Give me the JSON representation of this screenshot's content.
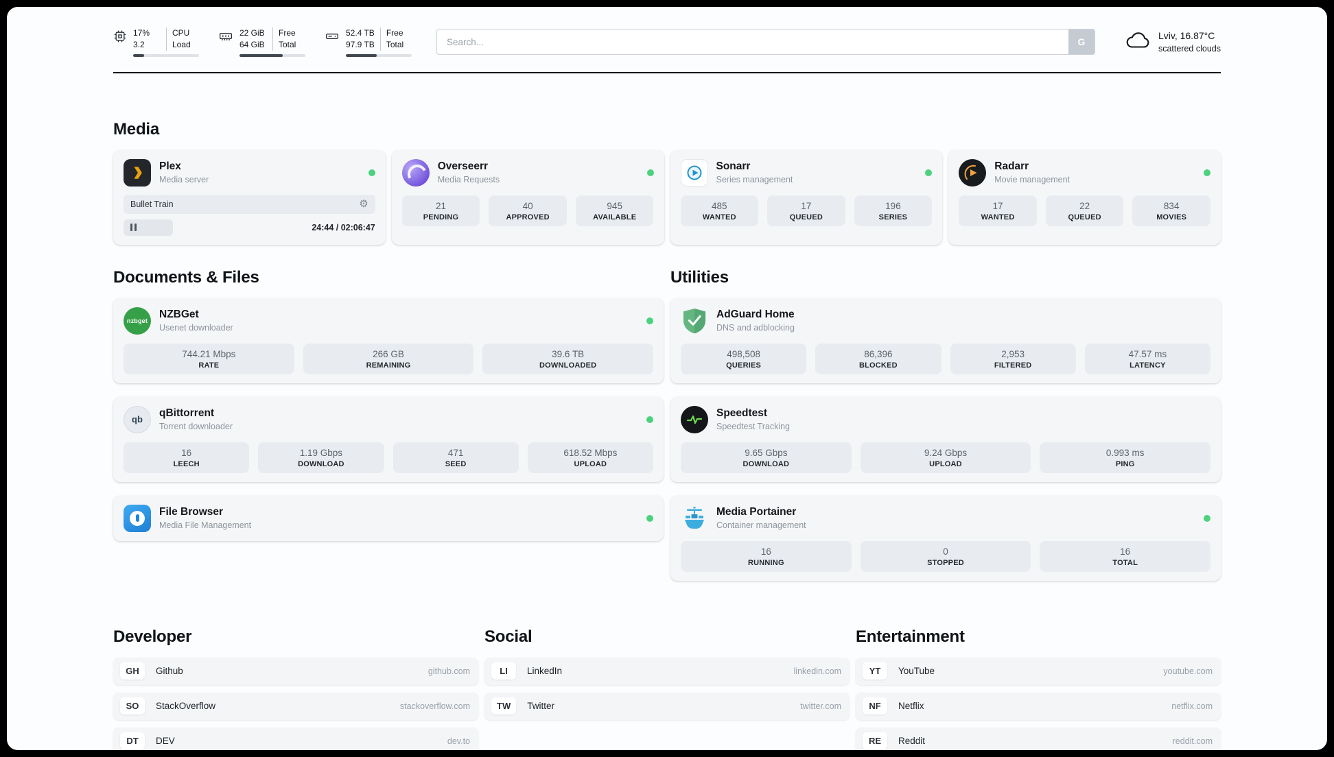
{
  "header": {
    "cpu": {
      "value_top": "17%",
      "value_bottom": "3.2",
      "label_top": "CPU",
      "label_bottom": "Load",
      "progress_percent": 17
    },
    "ram": {
      "value_top": "22 GiB",
      "value_bottom": "64 GiB",
      "label_top": "Free",
      "label_bottom": "Total",
      "progress_percent": 66
    },
    "disk": {
      "value_top": "52.4 TB",
      "value_bottom": "97.9 TB",
      "label_top": "Free",
      "label_bottom": "Total",
      "progress_percent": 47
    },
    "search": {
      "placeholder": "Search...",
      "button_label": "G"
    },
    "weather": {
      "location": "Lviv, 16.87°C",
      "condition": "scattered clouds"
    }
  },
  "sections": {
    "media": {
      "title": "Media",
      "apps": [
        {
          "name": "Plex",
          "subtitle": "Media server",
          "now_playing": "Bullet Train",
          "elapsed": "24:44 / 02:06:47",
          "progress_percent": 19.5
        },
        {
          "name": "Overseerr",
          "subtitle": "Media Requests",
          "stats": [
            {
              "value": "21",
              "label": "PENDING"
            },
            {
              "value": "40",
              "label": "APPROVED"
            },
            {
              "value": "945",
              "label": "AVAILABLE"
            }
          ]
        },
        {
          "name": "Sonarr",
          "subtitle": "Series management",
          "stats": [
            {
              "value": "485",
              "label": "WANTED"
            },
            {
              "value": "17",
              "label": "QUEUED"
            },
            {
              "value": "196",
              "label": "SERIES"
            }
          ]
        },
        {
          "name": "Radarr",
          "subtitle": "Movie management",
          "stats": [
            {
              "value": "17",
              "label": "WANTED"
            },
            {
              "value": "22",
              "label": "QUEUED"
            },
            {
              "value": "834",
              "label": "MOVIES"
            }
          ]
        }
      ]
    },
    "documents": {
      "title": "Documents & Files",
      "apps": [
        {
          "name": "NZBGet",
          "subtitle": "Usenet downloader",
          "stats": [
            {
              "value": "744.21 Mbps",
              "label": "RATE"
            },
            {
              "value": "266 GB",
              "label": "REMAINING"
            },
            {
              "value": "39.6 TB",
              "label": "DOWNLOADED"
            }
          ]
        },
        {
          "name": "qBittorrent",
          "subtitle": "Torrent downloader",
          "stats": [
            {
              "value": "16",
              "label": "LEECH"
            },
            {
              "value": "1.19 Gbps",
              "label": "DOWNLOAD"
            },
            {
              "value": "471",
              "label": "SEED"
            },
            {
              "value": "618.52 Mbps",
              "label": "UPLOAD"
            }
          ]
        },
        {
          "name": "File Browser",
          "subtitle": "Media File Management"
        }
      ]
    },
    "utilities": {
      "title": "Utilities",
      "apps": [
        {
          "name": "AdGuard Home",
          "subtitle": "DNS and adblocking",
          "stats": [
            {
              "value": "498,508",
              "label": "QUERIES"
            },
            {
              "value": "86,396",
              "label": "BLOCKED"
            },
            {
              "value": "2,953",
              "label": "FILTERED"
            },
            {
              "value": "47.57 ms",
              "label": "LATENCY"
            }
          ]
        },
        {
          "name": "Speedtest",
          "subtitle": "Speedtest Tracking",
          "stats": [
            {
              "value": "9.65 Gbps",
              "label": "DOWNLOAD"
            },
            {
              "value": "9.24 Gbps",
              "label": "UPLOAD"
            },
            {
              "value": "0.993 ms",
              "label": "PING"
            }
          ]
        },
        {
          "name": "Media Portainer",
          "subtitle": "Container management",
          "stats": [
            {
              "value": "16",
              "label": "RUNNING"
            },
            {
              "value": "0",
              "label": "STOPPED"
            },
            {
              "value": "16",
              "label": "TOTAL"
            }
          ]
        }
      ]
    }
  },
  "bookmarks": [
    {
      "title": "Developer",
      "items": [
        {
          "badge": "GH",
          "name": "Github",
          "url": "github.com"
        },
        {
          "badge": "SO",
          "name": "StackOverflow",
          "url": "stackoverflow.com"
        },
        {
          "badge": "DT",
          "name": "DEV",
          "url": "dev.to"
        }
      ]
    },
    {
      "title": "Social",
      "items": [
        {
          "badge": "LI",
          "name": "LinkedIn",
          "url": "linkedin.com"
        },
        {
          "badge": "TW",
          "name": "Twitter",
          "url": "twitter.com"
        }
      ]
    },
    {
      "title": "Entertainment",
      "items": [
        {
          "badge": "YT",
          "name": "YouTube",
          "url": "youtube.com"
        },
        {
          "badge": "NF",
          "name": "Netflix",
          "url": "netflix.com"
        },
        {
          "badge": "RE",
          "name": "Reddit",
          "url": "reddit.com"
        }
      ]
    }
  ],
  "icons": {
    "nzbget_text": "nzbget",
    "qbittorrent_text": "qb"
  },
  "colors": {
    "status_online": "#4cd27f",
    "plex_accent": "#e8a10e",
    "sonarr_accent": "#2193ce",
    "radarr_accent": "#f2a33c",
    "nzbget_accent": "#35a047",
    "overseerr_accent": "#6d4fd8",
    "filebrowser_accent": "#1d7fd4",
    "adguard_accent": "#5ead72",
    "speedtest_accent": "#70d94e",
    "portainer_accent": "#3dadde"
  }
}
